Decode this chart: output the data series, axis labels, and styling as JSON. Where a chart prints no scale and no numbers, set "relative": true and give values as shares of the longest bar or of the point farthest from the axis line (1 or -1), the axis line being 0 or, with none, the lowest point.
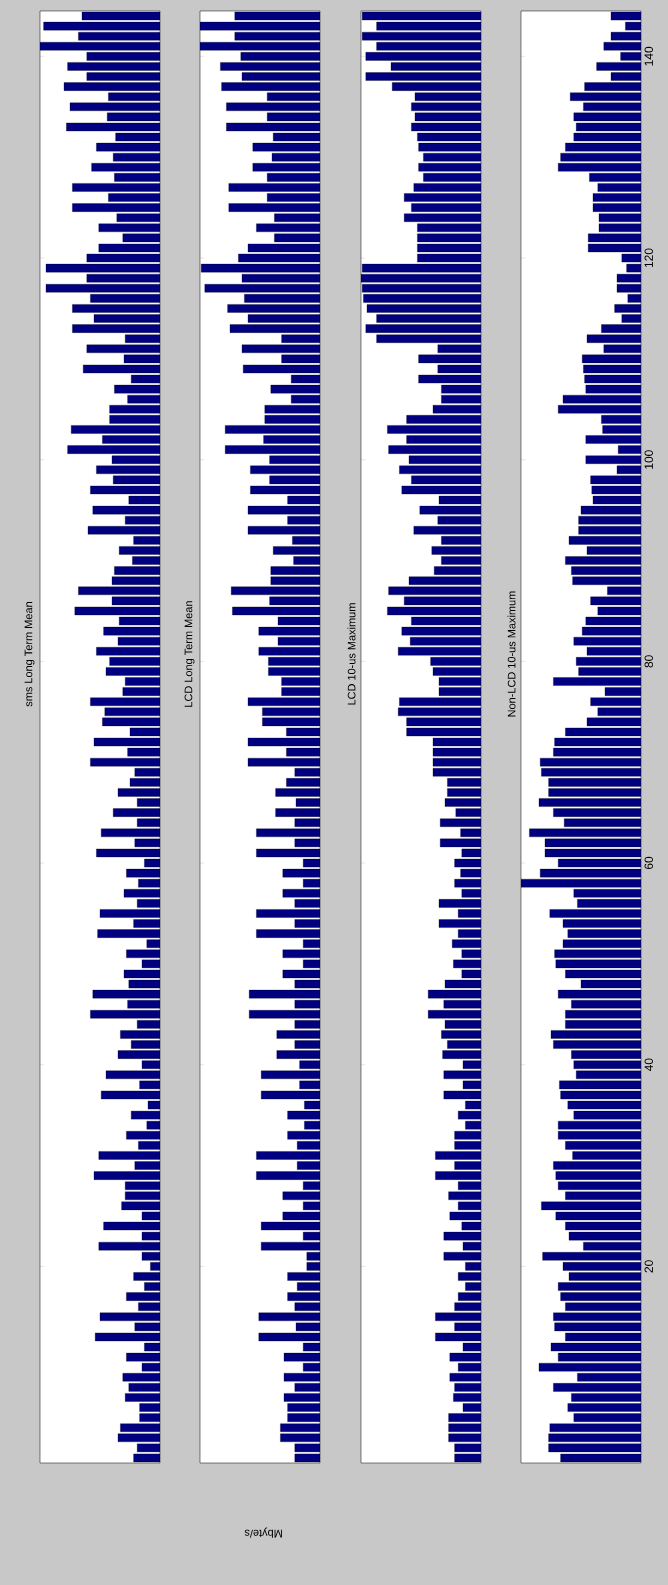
{
  "chart_data": [
    {
      "type": "bar",
      "orientation": "horizontal",
      "title": "sms Long Term Mean",
      "relative": true,
      "tick_labels": false,
      "color": "#000080",
      "ylim": [
        0.5,
        144.5
      ],
      "yticks": [
        20,
        40,
        60,
        80,
        100,
        120,
        140
      ],
      "x": [
        1,
        2,
        3,
        4,
        5,
        6,
        7,
        8,
        9,
        10,
        11,
        12,
        13,
        14,
        15,
        16,
        17,
        18,
        19,
        20,
        21,
        22,
        23,
        24,
        25,
        26,
        27,
        28,
        29,
        30,
        31,
        32,
        33,
        34,
        35,
        36,
        37,
        38,
        39,
        40,
        41,
        42,
        43,
        44,
        45,
        46,
        47,
        48,
        49,
        50,
        51,
        52,
        53,
        54,
        55,
        56,
        57,
        58,
        59,
        60,
        61,
        62,
        63,
        64,
        65,
        66,
        67,
        68,
        69,
        70,
        71,
        72,
        73,
        74,
        75,
        76,
        77,
        78,
        79,
        80,
        81,
        82,
        83,
        84,
        85,
        86,
        87,
        88,
        89,
        90,
        91,
        92,
        93,
        94,
        95,
        96,
        97,
        98,
        99,
        100,
        101,
        102,
        103,
        104,
        105,
        106,
        107,
        108,
        109,
        110,
        111,
        112,
        113,
        114,
        115,
        116,
        117,
        118,
        119,
        120,
        121,
        122,
        123,
        124,
        125,
        126,
        127,
        128,
        129,
        130,
        131,
        132,
        133,
        134,
        135,
        136,
        137,
        138,
        139,
        140,
        141,
        142,
        143,
        144
      ],
      "values": [
        0.22,
        0.19,
        0.35,
        0.33,
        0.17,
        0.17,
        0.29,
        0.26,
        0.31,
        0.15,
        0.28,
        0.13,
        0.54,
        0.21,
        0.5,
        0.18,
        0.28,
        0.13,
        0.22,
        0.08,
        0.15,
        0.51,
        0.15,
        0.47,
        0.15,
        0.32,
        0.29,
        0.29,
        0.55,
        0.21,
        0.51,
        0.18,
        0.28,
        0.11,
        0.24,
        0.1,
        0.49,
        0.17,
        0.45,
        0.15,
        0.35,
        0.24,
        0.33,
        0.19,
        0.58,
        0.27,
        0.56,
        0.26,
        0.3,
        0.15,
        0.28,
        0.11,
        0.52,
        0.22,
        0.5,
        0.19,
        0.3,
        0.18,
        0.28,
        0.13,
        0.53,
        0.21,
        0.49,
        0.19,
        0.39,
        0.19,
        0.35,
        0.25,
        0.21,
        0.58,
        0.27,
        0.55,
        0.25,
        0.48,
        0.46,
        0.58,
        0.31,
        0.29,
        0.45,
        0.42,
        0.53,
        0.35,
        0.47,
        0.34,
        0.71,
        0.4,
        0.68,
        0.4,
        0.38,
        0.23,
        0.34,
        0.22,
        0.6,
        0.29,
        0.56,
        0.26,
        0.58,
        0.39,
        0.53,
        0.4,
        0.77,
        0.48,
        0.74,
        0.42,
        0.42,
        0.27,
        0.38,
        0.24,
        0.64,
        0.3,
        0.61,
        0.29,
        0.73,
        0.55,
        0.73,
        0.58,
        0.95,
        0.61,
        0.95,
        0.61,
        0.51,
        0.31,
        0.51,
        0.36,
        0.73,
        0.43,
        0.73,
        0.38,
        0.57,
        0.39,
        0.53,
        0.37,
        0.78,
        0.44,
        0.75,
        0.43,
        0.8,
        0.61,
        0.77,
        0.61,
        1,
        0.68,
        0.97,
        0.65
      ]
    },
    {
      "type": "bar",
      "orientation": "horizontal",
      "title": "LCD Long Term Mean",
      "xlabel": "Mbyte/s",
      "relative": true,
      "tick_labels": false,
      "color": "#000080",
      "ylim": [
        0.5,
        144.5
      ],
      "yticks": [
        20,
        40,
        60,
        80,
        100,
        120,
        140
      ],
      "x": [
        1,
        2,
        3,
        4,
        5,
        6,
        7,
        8,
        9,
        10,
        11,
        12,
        13,
        14,
        15,
        16,
        17,
        18,
        19,
        20,
        21,
        22,
        23,
        24,
        25,
        26,
        27,
        28,
        29,
        30,
        31,
        32,
        33,
        34,
        35,
        36,
        37,
        38,
        39,
        40,
        41,
        42,
        43,
        44,
        45,
        46,
        47,
        48,
        49,
        50,
        51,
        52,
        53,
        54,
        55,
        56,
        57,
        58,
        59,
        60,
        61,
        62,
        63,
        64,
        65,
        66,
        67,
        68,
        69,
        70,
        71,
        72,
        73,
        74,
        75,
        76,
        77,
        78,
        79,
        80,
        81,
        82,
        83,
        84,
        85,
        86,
        87,
        88,
        89,
        90,
        91,
        92,
        93,
        94,
        95,
        96,
        97,
        98,
        99,
        100,
        101,
        102,
        103,
        104,
        105,
        106,
        107,
        108,
        109,
        110,
        111,
        112,
        113,
        114,
        115,
        116,
        117,
        118,
        119,
        120,
        121,
        122,
        123,
        124,
        125,
        126,
        127,
        128,
        129,
        130,
        131,
        132,
        133,
        134,
        135,
        136,
        137,
        138,
        139,
        140,
        141,
        142,
        143,
        144
      ],
      "values": [
        0.21,
        0.21,
        0.33,
        0.33,
        0.27,
        0.27,
        0.3,
        0.21,
        0.3,
        0.14,
        0.3,
        0.14,
        0.51,
        0.2,
        0.51,
        0.21,
        0.27,
        0.19,
        0.27,
        0.11,
        0.11,
        0.49,
        0.14,
        0.49,
        0.31,
        0.14,
        0.31,
        0.14,
        0.53,
        0.19,
        0.53,
        0.19,
        0.27,
        0.13,
        0.27,
        0.13,
        0.49,
        0.17,
        0.49,
        0.17,
        0.36,
        0.21,
        0.36,
        0.21,
        0.59,
        0.21,
        0.59,
        0.21,
        0.31,
        0.14,
        0.31,
        0.14,
        0.53,
        0.21,
        0.53,
        0.21,
        0.31,
        0.14,
        0.31,
        0.14,
        0.53,
        0.21,
        0.53,
        0.21,
        0.37,
        0.2,
        0.37,
        0.28,
        0.21,
        0.6,
        0.28,
        0.6,
        0.28,
        0.48,
        0.48,
        0.6,
        0.32,
        0.32,
        0.43,
        0.43,
        0.51,
        0.35,
        0.51,
        0.35,
        0.73,
        0.42,
        0.74,
        0.41,
        0.41,
        0.22,
        0.39,
        0.23,
        0.6,
        0.27,
        0.6,
        0.27,
        0.58,
        0.42,
        0.58,
        0.42,
        0.79,
        0.47,
        0.79,
        0.46,
        0.46,
        0.24,
        0.41,
        0.24,
        0.64,
        0.32,
        0.65,
        0.32,
        0.75,
        0.6,
        0.77,
        0.63,
        0.96,
        0.65,
        0.99,
        0.68,
        0.6,
        0.38,
        0.53,
        0.38,
        0.76,
        0.44,
        0.76,
        0.44,
        0.56,
        0.4,
        0.56,
        0.39,
        0.78,
        0.44,
        0.78,
        0.44,
        0.82,
        0.65,
        0.83,
        0.66,
        1,
        0.71,
        1,
        0.71
      ]
    },
    {
      "type": "bar",
      "orientation": "horizontal",
      "title": "LCD 10-us Maximum",
      "relative": true,
      "tick_labels": false,
      "color": "#000080",
      "ylim": [
        0.5,
        144.5
      ],
      "yticks": [
        20,
        40,
        60,
        80,
        100,
        120,
        140
      ],
      "x": [
        1,
        2,
        3,
        4,
        5,
        6,
        7,
        8,
        9,
        10,
        11,
        12,
        13,
        14,
        15,
        16,
        17,
        18,
        19,
        20,
        21,
        22,
        23,
        24,
        25,
        26,
        27,
        28,
        29,
        30,
        31,
        32,
        33,
        34,
        35,
        36,
        37,
        38,
        39,
        40,
        41,
        42,
        43,
        44,
        45,
        46,
        47,
        48,
        49,
        50,
        51,
        52,
        53,
        54,
        55,
        56,
        57,
        58,
        59,
        60,
        61,
        62,
        63,
        64,
        65,
        66,
        67,
        68,
        69,
        70,
        71,
        72,
        73,
        74,
        75,
        76,
        77,
        78,
        79,
        80,
        81,
        82,
        83,
        84,
        85,
        86,
        87,
        88,
        89,
        90,
        91,
        92,
        93,
        94,
        95,
        96,
        97,
        98,
        99,
        100,
        101,
        102,
        103,
        104,
        105,
        106,
        107,
        108,
        109,
        110,
        111,
        112,
        113,
        114,
        115,
        116,
        117,
        118,
        119,
        120,
        121,
        122,
        123,
        124,
        125,
        126,
        127,
        128,
        129,
        130,
        131,
        132,
        133,
        134,
        135,
        136,
        137,
        138,
        139,
        140,
        141,
        142,
        143,
        144
      ],
      "values": [
        0.22,
        0.22,
        0.27,
        0.27,
        0.27,
        0.15,
        0.23,
        0.22,
        0.26,
        0.19,
        0.26,
        0.15,
        0.38,
        0.22,
        0.38,
        0.22,
        0.19,
        0.13,
        0.19,
        0.13,
        0.31,
        0.15,
        0.31,
        0.16,
        0.26,
        0.19,
        0.27,
        0.19,
        0.38,
        0.22,
        0.38,
        0.22,
        0.22,
        0.13,
        0.19,
        0.13,
        0.31,
        0.15,
        0.31,
        0.15,
        0.32,
        0.28,
        0.33,
        0.3,
        0.44,
        0.31,
        0.44,
        0.3,
        0.16,
        0.23,
        0.16,
        0.24,
        0.19,
        0.35,
        0.19,
        0.35,
        0.16,
        0.22,
        0.17,
        0.22,
        0.16,
        0.34,
        0.17,
        0.34,
        0.21,
        0.3,
        0.28,
        0.28,
        0.4,
        0.4,
        0.4,
        0.4,
        0.62,
        0.62,
        0.69,
        0.68,
        0.35,
        0.35,
        0.4,
        0.42,
        0.69,
        0.59,
        0.66,
        0.58,
        0.78,
        0.64,
        0.77,
        0.6,
        0.39,
        0.33,
        0.41,
        0.33,
        0.56,
        0.36,
        0.51,
        0.35,
        0.66,
        0.58,
        0.68,
        0.6,
        0.77,
        0.62,
        0.78,
        0.62,
        0.4,
        0.33,
        0.33,
        0.52,
        0.36,
        0.52,
        0.36,
        0.87,
        0.96,
        0.87,
        0.95,
        0.98,
        0.99,
        1,
        0.99,
        0.53,
        0.53,
        0.53,
        0.53,
        0.64,
        0.58,
        0.64,
        0.56,
        0.48,
        0.52,
        0.48,
        0.52,
        0.53,
        0.58,
        0.55,
        0.58,
        0.55,
        0.74,
        0.96,
        0.75,
        0.96,
        0.87,
        0.99,
        0.87,
        0.99
      ]
    },
    {
      "type": "bar",
      "orientation": "horizontal",
      "title": "Non-LCD 10-us Maximum",
      "relative": true,
      "tick_labels": "y",
      "color": "#000080",
      "ylim": [
        0.5,
        144.5
      ],
      "yticks": [
        20,
        40,
        60,
        80,
        100,
        120,
        140
      ],
      "x": [
        1,
        2,
        3,
        4,
        5,
        6,
        7,
        8,
        9,
        10,
        11,
        12,
        13,
        14,
        15,
        16,
        17,
        18,
        19,
        20,
        21,
        22,
        23,
        24,
        25,
        26,
        27,
        28,
        29,
        30,
        31,
        32,
        33,
        34,
        35,
        36,
        37,
        38,
        39,
        40,
        41,
        42,
        43,
        44,
        45,
        46,
        47,
        48,
        49,
        50,
        51,
        52,
        53,
        54,
        55,
        56,
        57,
        58,
        59,
        60,
        61,
        62,
        63,
        64,
        65,
        66,
        67,
        68,
        69,
        70,
        71,
        72,
        73,
        74,
        75,
        76,
        77,
        78,
        79,
        80,
        81,
        82,
        83,
        84,
        85,
        86,
        87,
        88,
        89,
        90,
        91,
        92,
        93,
        94,
        95,
        96,
        97,
        98,
        99,
        100,
        101,
        102,
        103,
        104,
        105,
        106,
        107,
        108,
        109,
        110,
        111,
        112,
        113,
        114,
        115,
        116,
        117,
        118,
        119,
        120,
        121,
        122,
        123,
        124,
        125,
        126,
        127,
        128,
        129,
        130,
        131,
        132,
        133,
        134,
        135,
        136,
        137,
        138,
        139,
        140,
        141,
        142,
        143,
        144
      ],
      "values": [
        0.67,
        0.77,
        0.77,
        0.76,
        0.56,
        0.61,
        0.58,
        0.73,
        0.53,
        0.85,
        0.69,
        0.75,
        0.63,
        0.72,
        0.73,
        0.63,
        0.67,
        0.69,
        0.6,
        0.65,
        0.82,
        0.48,
        0.6,
        0.63,
        0.71,
        0.83,
        0.63,
        0.69,
        0.71,
        0.73,
        0.57,
        0.63,
        0.69,
        0.69,
        0.56,
        0.61,
        0.67,
        0.68,
        0.54,
        0.56,
        0.58,
        0.73,
        0.75,
        0.63,
        0.63,
        0.58,
        0.69,
        0.5,
        0.63,
        0.71,
        0.72,
        0.65,
        0.61,
        0.65,
        0.76,
        0.53,
        0.56,
        1,
        0.84,
        0.69,
        0.8,
        0.8,
        0.93,
        0.64,
        0.73,
        0.85,
        0.77,
        0.77,
        0.83,
        0.84,
        0.73,
        0.72,
        0.63,
        0.45,
        0.36,
        0.42,
        0.3,
        0.73,
        0.52,
        0.54,
        0.45,
        0.56,
        0.49,
        0.46,
        0.36,
        0.42,
        0.28,
        0.57,
        0.58,
        0.63,
        0.45,
        0.6,
        0.52,
        0.52,
        0.5,
        0.4,
        0.41,
        0.42,
        0.2,
        0.46,
        0.19,
        0.46,
        0.32,
        0.33,
        0.69,
        0.65,
        0.46,
        0.47,
        0.48,
        0.49,
        0.31,
        0.45,
        0.33,
        0.16,
        0.22,
        0.11,
        0.2,
        0.2,
        0.12,
        0.16,
        0.44,
        0.44,
        0.35,
        0.35,
        0.4,
        0.4,
        0.36,
        0.43,
        0.69,
        0.67,
        0.63,
        0.56,
        0.54,
        0.56,
        0.48,
        0.59,
        0.47,
        0.25,
        0.37,
        0.17,
        0.31,
        0.25,
        0.13,
        0.25
      ]
    }
  ]
}
